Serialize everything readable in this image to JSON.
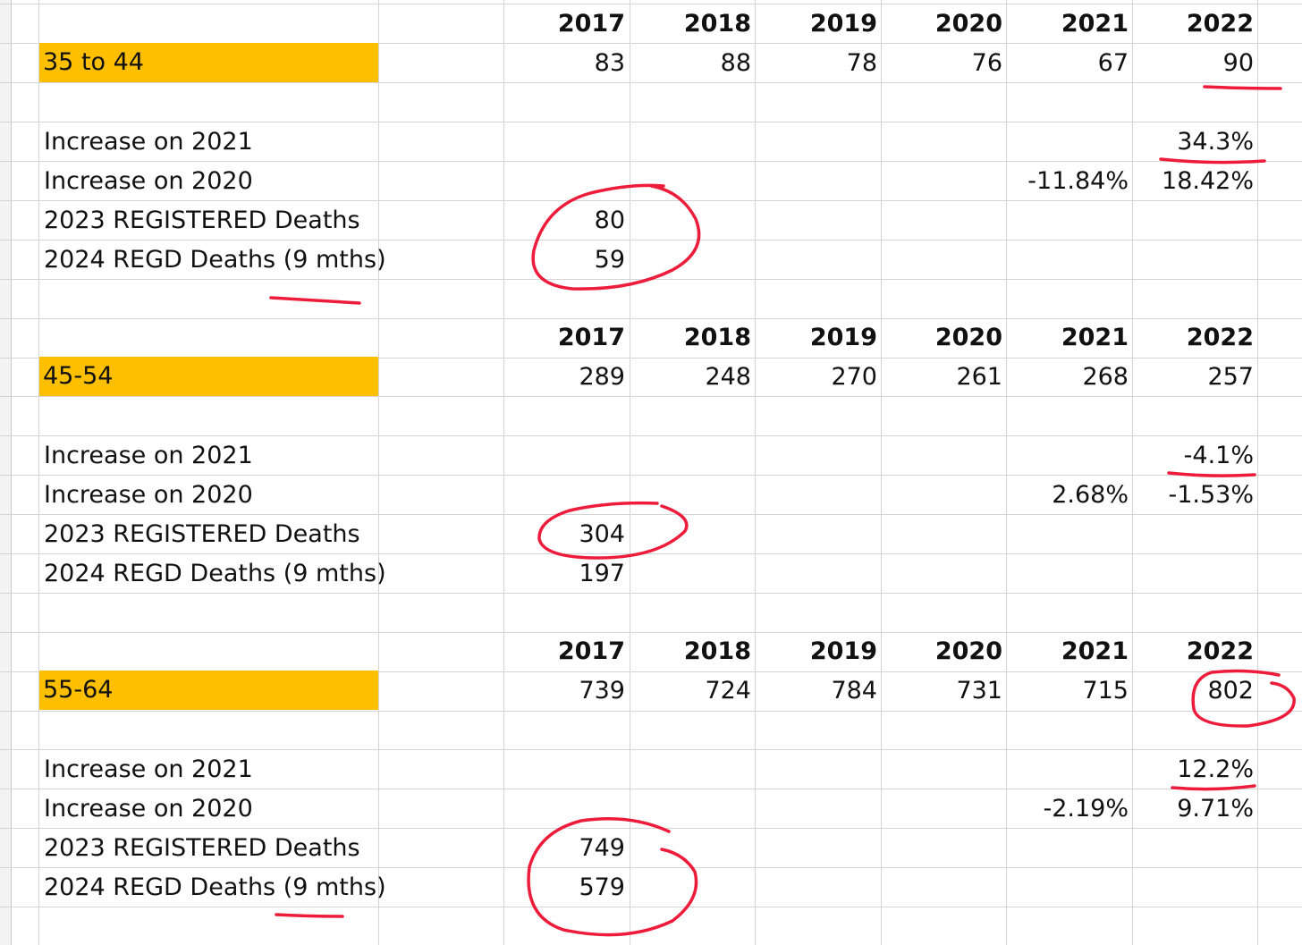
{
  "years": [
    "2017",
    "2018",
    "2019",
    "2020",
    "2021",
    "2022"
  ],
  "row_labels": {
    "increase_2021": "Increase on 2021",
    "increase_2020": "Increase on 2020",
    "registered_2023": "2023 REGISTERED Deaths",
    "regd_2024": "2024 REGD Deaths (9 mths)"
  },
  "sections": [
    {
      "age_band": "35 to 44",
      "values": [
        "83",
        "88",
        "78",
        "76",
        "67",
        "90"
      ],
      "increase_2021": {
        "2022": "34.3%"
      },
      "increase_2020": {
        "2021": "-11.84%",
        "2022": "18.42%"
      },
      "registered_2023": "80",
      "regd_2024": "59"
    },
    {
      "age_band": "45-54",
      "values": [
        "289",
        "248",
        "270",
        "261",
        "268",
        "257"
      ],
      "increase_2021": {
        "2022": "-4.1%"
      },
      "increase_2020": {
        "2021": "2.68%",
        "2022": "-1.53%"
      },
      "registered_2023": "304",
      "regd_2024": "197"
    },
    {
      "age_band": "55-64",
      "values": [
        "739",
        "724",
        "784",
        "731",
        "715",
        "802"
      ],
      "increase_2021": {
        "2022": "12.2%"
      },
      "increase_2020": {
        "2021": "-2.19%",
        "2022": "9.71%"
      },
      "registered_2023": "749",
      "regd_2024": "579"
    }
  ],
  "colors": {
    "age_band_fill": "#fdbf00",
    "annotation_ink": "#ee1c3b",
    "gridline": "#d4d4d4"
  }
}
